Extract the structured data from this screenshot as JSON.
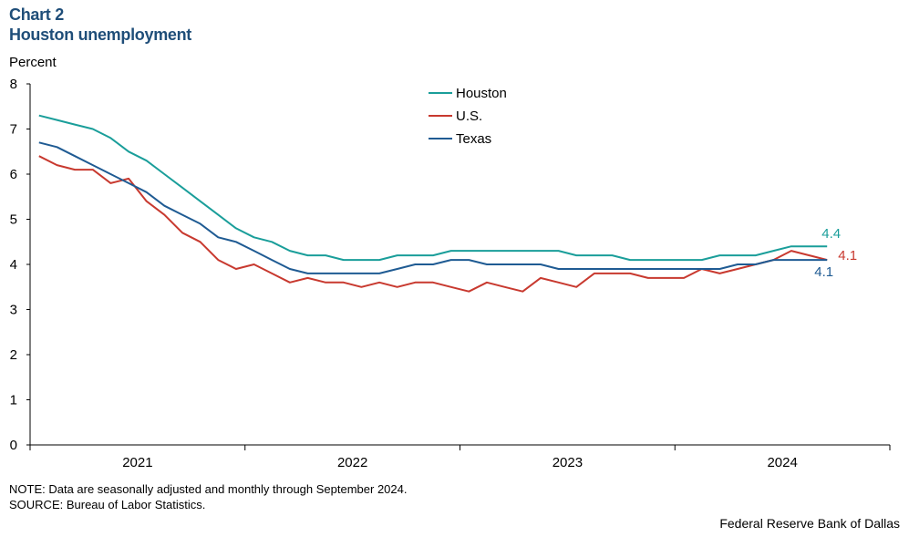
{
  "header": {
    "chart_number": "Chart 2",
    "title": "Houston unemployment"
  },
  "chart_data": {
    "type": "line",
    "title": "Houston unemployment",
    "ylabel": "Percent",
    "xlabel": "",
    "ylim": [
      0,
      8
    ],
    "yticks": [
      "0",
      "1",
      "2",
      "3",
      "4",
      "5",
      "6",
      "7",
      "8"
    ],
    "xtick_labels": [
      "2021",
      "2022",
      "2023",
      "2024"
    ],
    "x_start": "2021-01",
    "grid": false,
    "legend_position": "top-center",
    "series": [
      {
        "name": "Houston",
        "color": "#1a9e9a",
        "end_label": "4.4",
        "values": [
          7.3,
          7.2,
          7.1,
          7.0,
          6.8,
          6.5,
          6.3,
          6.0,
          5.7,
          5.4,
          5.1,
          4.8,
          4.6,
          4.5,
          4.3,
          4.2,
          4.2,
          4.1,
          4.1,
          4.1,
          4.2,
          4.2,
          4.2,
          4.3,
          4.3,
          4.3,
          4.3,
          4.3,
          4.3,
          4.3,
          4.2,
          4.2,
          4.2,
          4.1,
          4.1,
          4.1,
          4.1,
          4.1,
          4.2,
          4.2,
          4.2,
          4.3,
          4.4,
          4.4,
          4.4
        ]
      },
      {
        "name": "U.S.",
        "color": "#c8392f",
        "end_label": "4.1",
        "values": [
          6.4,
          6.2,
          6.1,
          6.1,
          5.8,
          5.9,
          5.4,
          5.1,
          4.7,
          4.5,
          4.1,
          3.9,
          4.0,
          3.8,
          3.6,
          3.7,
          3.6,
          3.6,
          3.5,
          3.6,
          3.5,
          3.6,
          3.6,
          3.5,
          3.4,
          3.6,
          3.5,
          3.4,
          3.7,
          3.6,
          3.5,
          3.8,
          3.8,
          3.8,
          3.7,
          3.7,
          3.7,
          3.9,
          3.8,
          3.9,
          4.0,
          4.1,
          4.3,
          4.2,
          4.1
        ]
      },
      {
        "name": "Texas",
        "color": "#1f5b93",
        "end_label": "4.1",
        "values": [
          6.7,
          6.6,
          6.4,
          6.2,
          6.0,
          5.8,
          5.6,
          5.3,
          5.1,
          4.9,
          4.6,
          4.5,
          4.3,
          4.1,
          3.9,
          3.8,
          3.8,
          3.8,
          3.8,
          3.8,
          3.9,
          4.0,
          4.0,
          4.1,
          4.1,
          4.0,
          4.0,
          4.0,
          4.0,
          3.9,
          3.9,
          3.9,
          3.9,
          3.9,
          3.9,
          3.9,
          3.9,
          3.9,
          3.9,
          4.0,
          4.0,
          4.1,
          4.1,
          4.1,
          4.1
        ]
      }
    ]
  },
  "footer": {
    "note": "NOTE: Data are seasonally adjusted and monthly through September 2024.",
    "source": "SOURCE: Bureau of Labor Statistics.",
    "credit": "Federal Reserve Bank of Dallas"
  }
}
